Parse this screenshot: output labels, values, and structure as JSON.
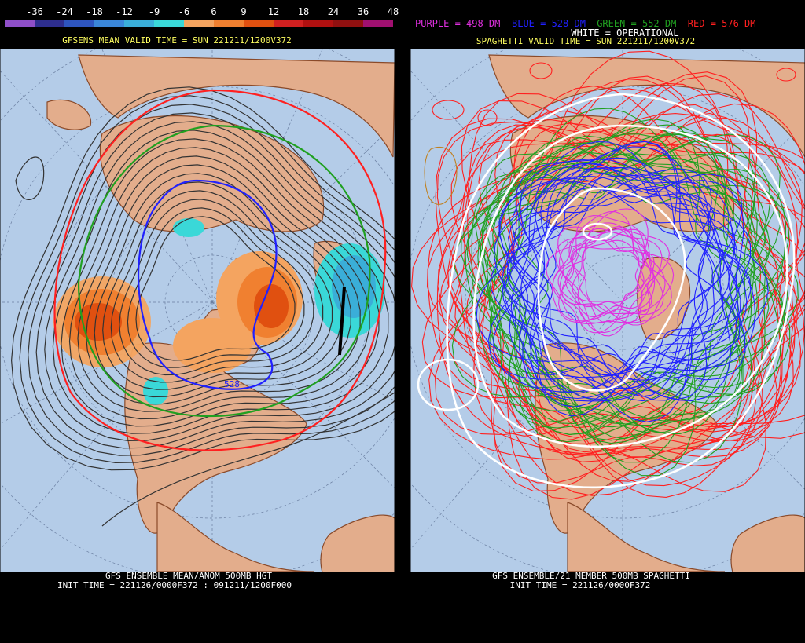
{
  "left_panel": {
    "colorbar": {
      "labels": [
        "-36",
        "-24",
        "-18",
        "-12",
        "-9",
        "-6",
        "6",
        "9",
        "12",
        "18",
        "24",
        "36",
        "48"
      ],
      "colors": [
        "#8f4fc8",
        "#2e2e8f",
        "#2e55bf",
        "#3a86d8",
        "#3aaed8",
        "#3ad8d8",
        "#f4a460",
        "#f08030",
        "#e05010",
        "#d02020",
        "#b01010",
        "#901010",
        "#a01070"
      ]
    },
    "valid_time": "GFSENS MEAN VALID TIME = SUN 221211/1200V372",
    "contour_label": "528",
    "footer_line1": "GFS ENSEMBLE MEAN/ANOM 500MB HGT",
    "footer_line2": "INIT TIME = 221126/0000F372 : 091211/1200F000"
  },
  "right_panel": {
    "legend": [
      {
        "text": "PURPLE = 498 DM",
        "color": "#e030e0"
      },
      {
        "text": "BLUE = 528 DM",
        "color": "#2020ff"
      },
      {
        "text": "GREEN = 552 DM",
        "color": "#20a020"
      },
      {
        "text": "RED = 576 DM",
        "color": "#ff2020"
      }
    ],
    "operational": "WHITE = OPERATIONAL",
    "valid_time": "SPAGHETTI VALID TIME = SUN 221211/1200V372",
    "footer_line1": "GFS ENSEMBLE/21 MEMBER 500MB SPAGHETTI",
    "footer_line2": "INIT TIME = 221126/0000F372"
  },
  "colors": {
    "ocean": "#b4cce8",
    "land": "#e3ad8c",
    "coast": "#8a4a2a",
    "contour": "#333333",
    "title_yellow": "#ffff60"
  }
}
